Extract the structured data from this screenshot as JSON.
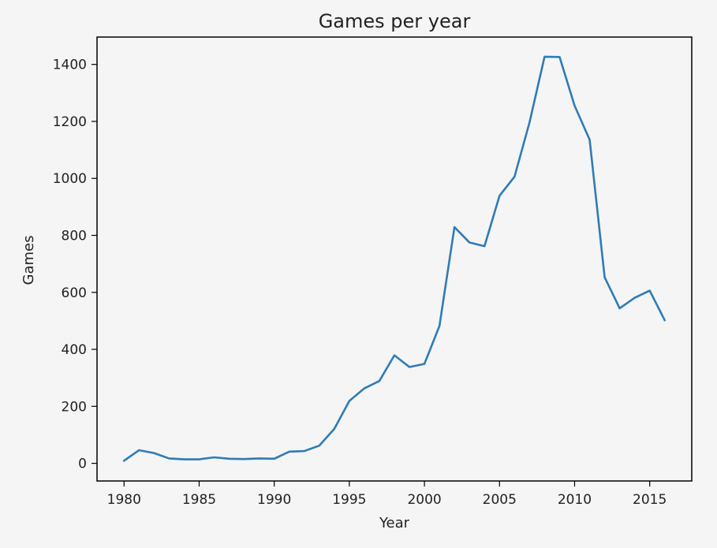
{
  "chart_data": {
    "type": "line",
    "title": "Games per year",
    "xlabel": "Year",
    "ylabel": "Games",
    "xlim": [
      1978.2,
      2017.8
    ],
    "ylim": [
      -62,
      1496
    ],
    "x_ticks": [
      1980,
      1985,
      1990,
      1995,
      2000,
      2005,
      2010,
      2015
    ],
    "y_ticks": [
      0,
      200,
      400,
      600,
      800,
      1000,
      1200,
      1400
    ],
    "grid": false,
    "legend": "none",
    "series": [
      {
        "color": "#2f7bb5",
        "x": [
          1980,
          1981,
          1982,
          1983,
          1984,
          1985,
          1986,
          1987,
          1988,
          1989,
          1990,
          1991,
          1992,
          1993,
          1994,
          1995,
          1996,
          1997,
          1998,
          1999,
          2000,
          2001,
          2002,
          2003,
          2004,
          2005,
          2006,
          2007,
          2008,
          2009,
          2010,
          2011,
          2012,
          2013,
          2014,
          2015,
          2016
        ],
        "values": [
          9,
          46,
          36,
          17,
          14,
          14,
          21,
          16,
          15,
          17,
          16,
          41,
          43,
          62,
          121,
          219,
          263,
          289,
          379,
          338,
          349,
          482,
          829,
          775,
          762,
          939,
          1006,
          1197,
          1427,
          1426,
          1255,
          1136,
          653,
          544,
          581,
          606,
          502
        ]
      }
    ]
  }
}
